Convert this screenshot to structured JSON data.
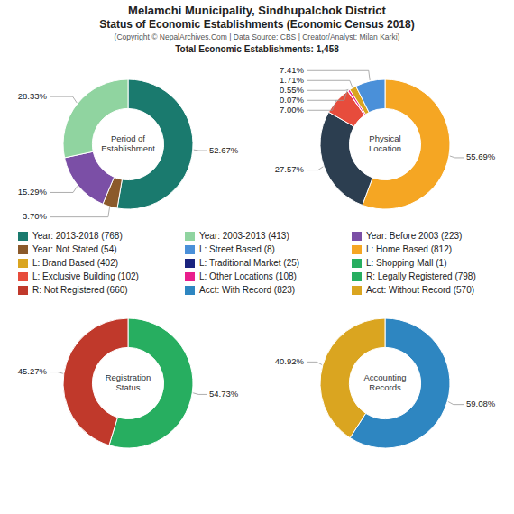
{
  "title": [
    "Melamchi Municipality, Sindhupalchok District",
    "Status of Economic Establishments (Economic Census 2018)"
  ],
  "subtitle": "(Copyright © NepalArchives.Com | Data Source: CBS | Creator/Analyst: Milan Karki)",
  "annotations": [
    "Total Economic Establishments: 1,458"
  ],
  "series": [
    {
      "name": "Year: 2013-2018 (768)",
      "color": "#1a7a6e"
    },
    {
      "name": "Year: Not Stated (54)",
      "color": "#8B5A2B"
    },
    {
      "name": "L: Brand Based (402)",
      "color": "#DAA520"
    },
    {
      "name": "L: Exclusive Building (102)",
      "color": "#E74C3C"
    },
    {
      "name": "R: Not Registered (660)",
      "color": "#C0392B"
    },
    {
      "name": "Year: 2003-2013 (413)",
      "color": "#90D4A0"
    },
    {
      "name": "L: Street Based (8)",
      "color": "#4A90D9"
    },
    {
      "name": "L: Traditional Market (25)",
      "color": "#1A237E"
    },
    {
      "name": "L: Other Locations (108)",
      "color": "#E91E8C"
    },
    {
      "name": "Acct: With Record (823)",
      "color": "#2E86C1"
    },
    {
      "name": "Year: Before 2003 (223)",
      "color": "#7B4FA6"
    },
    {
      "name": "L: Home Based (812)",
      "color": "#F5A623"
    },
    {
      "name": "L: Shopping Mall (1)",
      "color": "#27AE60"
    },
    {
      "name": "R: Legally Registered (798)",
      "color": "#27AE60"
    },
    {
      "name": "Acct: Without Record (570)",
      "color": "#DAA520"
    }
  ],
  "chart_data": [
    {
      "type": "pie",
      "title": "Period of\nEstablishment",
      "values": [
        52.67,
        3.7,
        15.29,
        28.33
      ],
      "value_labels": [
        "52.67%",
        "3.70%",
        "15.29%",
        "28.33%"
      ],
      "colors": [
        "#1a7a6e",
        "#8B5A2B",
        "#7B4FA6",
        "#90D4A0"
      ]
    },
    {
      "type": "pie",
      "title": "Physical\nLocation",
      "values": [
        55.69,
        27.57,
        7.0,
        0.07,
        0.55,
        1.71,
        7.41
      ],
      "value_labels": [
        "55.69%",
        "27.57%",
        "7.00%",
        "0.07%",
        "0.55%",
        "1.71%",
        "7.41%"
      ],
      "colors": [
        "#F5A623",
        "#2C3E50",
        "#E74C3C",
        "#1A237E",
        "#E91E8C",
        "#DAA520",
        "#4A90D9"
      ]
    },
    {
      "type": "pie",
      "title": "Registration\nStatus",
      "values": [
        54.73,
        45.27
      ],
      "value_labels": [
        "54.73%",
        "45.27%"
      ],
      "colors": [
        "#27AE60",
        "#C0392B"
      ]
    },
    {
      "type": "pie",
      "title": "Accounting\nRecords",
      "values": [
        59.08,
        40.92
      ],
      "value_labels": [
        "59.08%",
        "40.92%"
      ],
      "colors": [
        "#2E86C1",
        "#DAA520"
      ]
    }
  ]
}
